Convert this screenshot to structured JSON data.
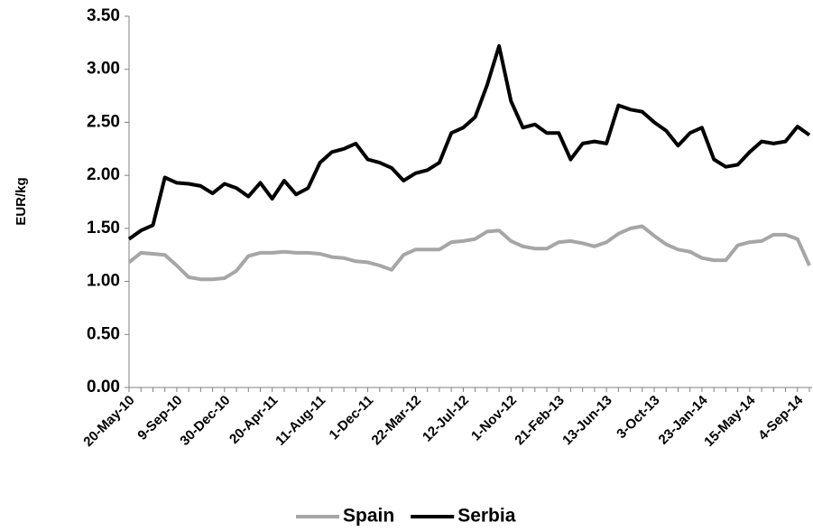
{
  "chart_data": {
    "type": "line",
    "y_axis_label": "EUR/kg",
    "categories": [
      "20-May-10",
      null,
      null,
      null,
      "9-Sep-10",
      null,
      null,
      null,
      "30-Dec-10",
      null,
      null,
      null,
      "20-Apr-11",
      null,
      null,
      null,
      "11-Aug-11",
      null,
      null,
      null,
      "1-Dec-11",
      null,
      null,
      null,
      "22-Mar-12",
      null,
      null,
      null,
      "12-Jul-12",
      null,
      null,
      null,
      "1-Nov-12",
      null,
      null,
      null,
      "21-Feb-13",
      null,
      null,
      null,
      "13-Jun-13",
      null,
      null,
      null,
      "3-Oct-13",
      null,
      null,
      null,
      "23-Jan-14",
      null,
      null,
      null,
      "15-May-14",
      null,
      null,
      null,
      "4-Sep-14",
      null
    ],
    "series": [
      {
        "name": "Spain",
        "color": "#a6a6a6",
        "values": [
          1.18,
          1.27,
          1.26,
          1.25,
          1.15,
          1.04,
          1.02,
          1.02,
          1.03,
          1.1,
          1.24,
          1.27,
          1.27,
          1.28,
          1.27,
          1.27,
          1.26,
          1.23,
          1.22,
          1.19,
          1.18,
          1.15,
          1.11,
          1.25,
          1.3,
          1.3,
          1.3,
          1.37,
          1.38,
          1.4,
          1.47,
          1.48,
          1.38,
          1.33,
          1.31,
          1.31,
          1.37,
          1.38,
          1.36,
          1.33,
          1.37,
          1.45,
          1.5,
          1.52,
          1.43,
          1.35,
          1.3,
          1.28,
          1.22,
          1.2,
          1.2,
          1.34,
          1.37,
          1.38,
          1.44,
          1.44,
          1.4,
          1.15
        ]
      },
      {
        "name": "Serbia",
        "color": "#000000",
        "values": [
          1.4,
          1.48,
          1.53,
          1.98,
          1.93,
          1.92,
          1.9,
          1.83,
          1.92,
          1.88,
          1.8,
          1.93,
          1.78,
          1.95,
          1.82,
          1.88,
          2.12,
          2.22,
          2.25,
          2.3,
          2.15,
          2.12,
          2.07,
          1.95,
          2.02,
          2.05,
          2.12,
          2.4,
          2.45,
          2.55,
          2.85,
          3.22,
          2.7,
          2.45,
          2.48,
          2.4,
          2.4,
          2.15,
          2.3,
          2.32,
          2.3,
          2.66,
          2.62,
          2.6,
          2.5,
          2.42,
          2.28,
          2.4,
          2.45,
          2.15,
          2.08,
          2.1,
          2.22,
          2.32,
          2.3,
          2.32,
          2.46,
          2.38
        ]
      }
    ],
    "ylim": [
      0,
      3.5
    ],
    "yticks": [
      {
        "value": 0,
        "label": "0.00"
      },
      {
        "value": 0.5,
        "label": "0.50"
      },
      {
        "value": 1,
        "label": "1.00"
      },
      {
        "value": 1.5,
        "label": "1.50"
      },
      {
        "value": 2,
        "label": "2.00"
      },
      {
        "value": 2.5,
        "label": "2.50"
      },
      {
        "value": 3,
        "label": "3.00"
      },
      {
        "value": 3.5,
        "label": "3.50"
      }
    ],
    "grid": false,
    "legend": "bottom"
  }
}
